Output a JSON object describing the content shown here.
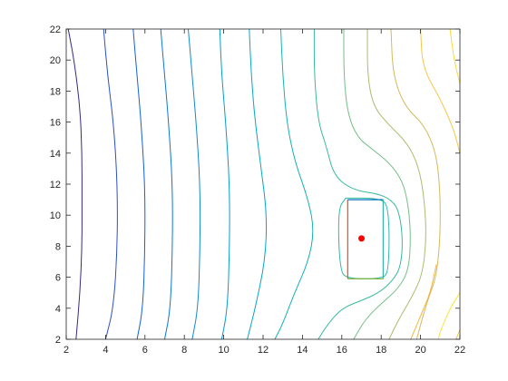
{
  "chart_data": {
    "type": "contour",
    "title": "",
    "xlabel": "",
    "ylabel": "",
    "xlim": [
      2,
      22
    ],
    "ylim": [
      2,
      22
    ],
    "xticks": [
      2,
      4,
      6,
      8,
      10,
      12,
      14,
      16,
      18,
      20,
      22
    ],
    "yticks": [
      2,
      4,
      6,
      8,
      10,
      12,
      14,
      16,
      18,
      20,
      22
    ],
    "grid": false,
    "legend": "none",
    "box": true,
    "contour_lines": [
      {
        "color": "#352a87",
        "points": [
          [
            2.1,
            22
          ],
          [
            2.4,
            20
          ],
          [
            2.7,
            17
          ],
          [
            2.8,
            14
          ],
          [
            2.8,
            11
          ],
          [
            2.8,
            8
          ],
          [
            2.7,
            5
          ],
          [
            2.5,
            2
          ]
        ]
      },
      {
        "color": "#2b4fc7",
        "points": [
          [
            3.9,
            22
          ],
          [
            4.1,
            19
          ],
          [
            4.4,
            16
          ],
          [
            4.6,
            12
          ],
          [
            4.6,
            8
          ],
          [
            4.4,
            4
          ],
          [
            4.0,
            2
          ]
        ]
      },
      {
        "color": "#1262d9",
        "points": [
          [
            5.4,
            22
          ],
          [
            5.6,
            19
          ],
          [
            5.8,
            16
          ],
          [
            6.0,
            12
          ],
          [
            6.0,
            8
          ],
          [
            5.9,
            4
          ],
          [
            5.6,
            2
          ]
        ]
      },
      {
        "color": "#0d77d8",
        "points": [
          [
            6.8,
            22
          ],
          [
            7.0,
            19
          ],
          [
            7.2,
            16
          ],
          [
            7.4,
            12
          ],
          [
            7.4,
            8
          ],
          [
            7.3,
            4
          ],
          [
            7.0,
            2
          ]
        ]
      },
      {
        "color": "#1389d2",
        "points": [
          [
            8.2,
            22
          ],
          [
            8.4,
            19
          ],
          [
            8.6,
            16
          ],
          [
            8.8,
            12
          ],
          [
            8.8,
            8
          ],
          [
            8.7,
            4
          ],
          [
            8.4,
            2
          ]
        ]
      },
      {
        "color": "#079ccf",
        "points": [
          [
            9.8,
            22
          ],
          [
            9.9,
            19
          ],
          [
            10.1,
            16
          ],
          [
            10.3,
            12
          ],
          [
            10.3,
            8
          ],
          [
            10.2,
            4
          ],
          [
            9.9,
            2
          ]
        ]
      },
      {
        "color": "#06a7c6",
        "points": [
          [
            11.3,
            22
          ],
          [
            11.4,
            19
          ],
          [
            11.6,
            16
          ],
          [
            11.9,
            13
          ],
          [
            12.2,
            10
          ],
          [
            12.1,
            7
          ],
          [
            11.6,
            4
          ],
          [
            11.2,
            2
          ]
        ]
      },
      {
        "color": "#15b1b4",
        "points": [
          [
            12.9,
            22
          ],
          [
            13.0,
            19
          ],
          [
            13.2,
            16
          ],
          [
            13.6,
            13.5
          ],
          [
            14.3,
            11
          ],
          [
            14.6,
            9
          ],
          [
            14.3,
            7
          ],
          [
            13.6,
            5
          ],
          [
            13.0,
            3
          ],
          [
            12.6,
            2
          ]
        ]
      },
      {
        "color": "#38b99e",
        "points": [
          [
            14.6,
            22
          ],
          [
            14.6,
            19
          ],
          [
            14.8,
            16
          ],
          [
            15.2,
            14.5
          ],
          [
            15.6,
            12.5
          ],
          [
            16.6,
            11.6
          ],
          [
            17.8,
            11.4
          ],
          [
            18.5,
            11.0
          ],
          [
            18.9,
            10.3
          ],
          [
            19.1,
            8.5
          ],
          [
            19.0,
            6.7
          ],
          [
            18.6,
            5.8
          ],
          [
            17.9,
            5.0
          ],
          [
            17.0,
            4.5
          ],
          [
            16.0,
            4.0
          ],
          [
            15.3,
            3.0
          ],
          [
            14.8,
            2
          ]
        ]
      },
      {
        "color": "#74bf87",
        "points": [
          [
            16.1,
            22
          ],
          [
            16.1,
            19
          ],
          [
            16.3,
            16.5
          ],
          [
            16.8,
            15
          ],
          [
            17.5,
            14.3
          ],
          [
            18.4,
            13.4
          ],
          [
            19.1,
            12.2
          ],
          [
            19.4,
            10.5
          ],
          [
            19.5,
            8.5
          ],
          [
            19.4,
            6.5
          ],
          [
            18.9,
            5.3
          ],
          [
            18.0,
            4.3
          ],
          [
            17.2,
            3.3
          ],
          [
            16.6,
            2
          ]
        ]
      },
      {
        "color": "#a8bd6f",
        "points": [
          [
            17.3,
            22
          ],
          [
            17.3,
            19
          ],
          [
            17.6,
            17
          ],
          [
            18.4,
            15.8
          ],
          [
            19.3,
            14.7
          ],
          [
            19.9,
            13.2
          ],
          [
            20.2,
            11
          ],
          [
            20.3,
            8.5
          ],
          [
            20.1,
            6.2
          ],
          [
            19.6,
            4.8
          ],
          [
            18.9,
            3.3
          ],
          [
            18.4,
            2
          ]
        ]
      },
      {
        "color": "#d4b95c",
        "points": [
          [
            18.5,
            22
          ],
          [
            18.6,
            19
          ],
          [
            19.2,
            17
          ],
          [
            20.2,
            15.8
          ],
          [
            20.8,
            14
          ],
          [
            21.0,
            11.5
          ],
          [
            21.0,
            8.5
          ],
          [
            20.8,
            6
          ],
          [
            20.3,
            4.3
          ],
          [
            19.8,
            2
          ]
        ]
      },
      {
        "color": "#f2c74a",
        "points": [
          [
            20.0,
            22
          ],
          [
            20.1,
            19.5
          ],
          [
            21.0,
            17.5
          ],
          [
            21.7,
            15.5
          ],
          [
            22,
            14
          ]
        ]
      },
      {
        "color": "#fad93c",
        "points": [
          [
            21.5,
            22
          ],
          [
            21.7,
            20
          ],
          [
            22,
            18.5
          ]
        ]
      },
      {
        "color": "#f7e63a",
        "points": [
          [
            22,
            5
          ],
          [
            21.5,
            4
          ],
          [
            21.0,
            2.5
          ],
          [
            20.9,
            2
          ]
        ]
      },
      {
        "color": "#eec643",
        "points": [
          [
            22,
            2.6
          ],
          [
            21.8,
            2
          ]
        ]
      },
      {
        "color": "#f2b744",
        "points": [
          [
            20.8,
            6.8
          ],
          [
            20.5,
            5
          ],
          [
            20.0,
            3.5
          ],
          [
            19.5,
            2
          ]
        ]
      },
      {
        "color": "#2fb7a8",
        "points": [
          [
            16.2,
            11.1
          ],
          [
            17.9,
            11.1
          ],
          [
            18.4,
            10.6
          ],
          [
            18.4,
            6.3
          ],
          [
            18.0,
            5.9
          ],
          [
            16.3,
            5.9
          ],
          [
            15.9,
            6.4
          ],
          [
            15.8,
            10.4
          ],
          [
            16.2,
            11.1
          ]
        ]
      }
    ],
    "rectangle": {
      "x": [
        16.3,
        18.1
      ],
      "y": [
        5.9,
        11.0
      ],
      "colors": {
        "left": "#d95319",
        "top": "#0072bd",
        "right": "#2fb7a8",
        "bottom": "#77ac30"
      }
    },
    "point": {
      "x": 17.0,
      "y": 8.5,
      "color": "#ff0000"
    }
  }
}
